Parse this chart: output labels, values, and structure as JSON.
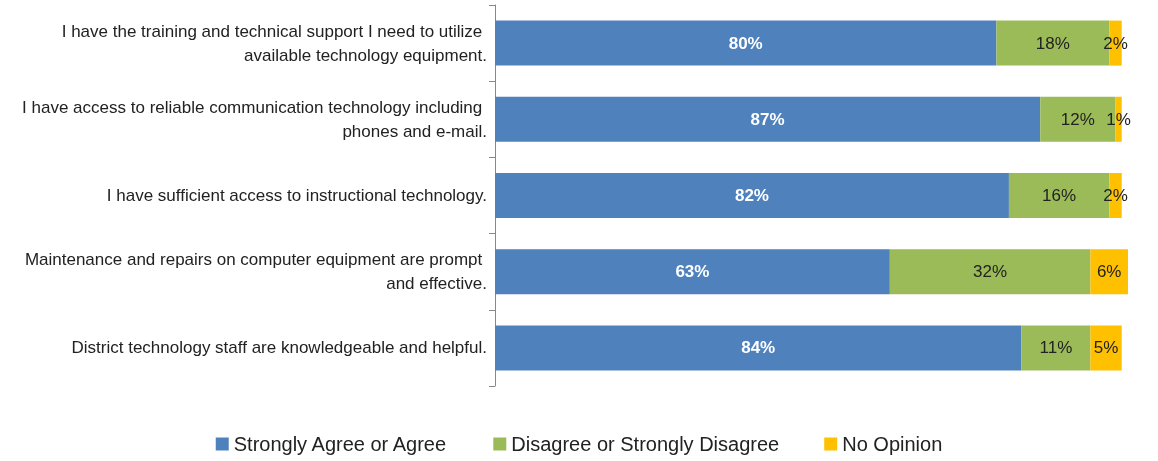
{
  "chart_data": {
    "type": "bar",
    "orientation": "horizontal",
    "stacked": true,
    "legend": "bottom",
    "categories": [
      "I have the training and technical support I need to utilize available technology equipment.",
      "I have access to reliable communication technology including phones and e-mail.",
      "I have sufficient access to instructional technology.",
      "Maintenance and repairs on computer equipment are prompt and effective.",
      "District technology staff are knowledgeable and helpful."
    ],
    "series": [
      {
        "name": "Strongly Agree or Agree",
        "color": "#4f81bd",
        "values": [
          80,
          87,
          82,
          63,
          84
        ],
        "value_labels": [
          "80%",
          "87%",
          "82%",
          "63%",
          "84%"
        ]
      },
      {
        "name": "Disagree or Strongly Disagree",
        "color": "#9bbb59",
        "values": [
          18,
          12,
          16,
          32,
          11
        ],
        "value_labels": [
          "18%",
          "12%",
          "16%",
          "32%",
          "11%"
        ]
      },
      {
        "name": "No Opinion",
        "color": "#ffc000",
        "values": [
          2,
          1,
          2,
          6,
          5
        ],
        "value_labels": [
          "2%",
          "1%",
          "2%",
          "6%",
          "5%"
        ]
      }
    ]
  }
}
